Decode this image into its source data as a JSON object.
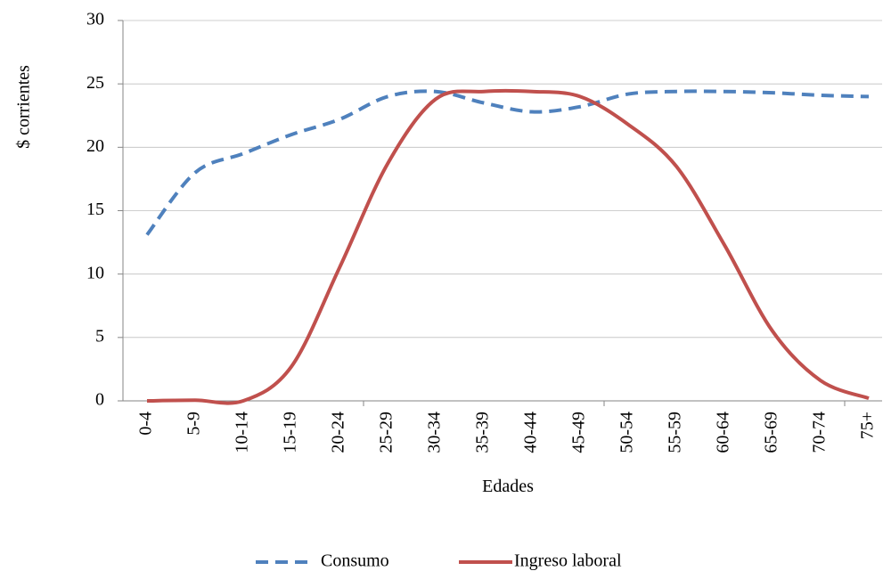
{
  "chart_data": {
    "type": "line",
    "x_label": "Edades",
    "y_label": "$ corrientes",
    "categories": [
      "0-4",
      "5-9",
      "10-14",
      "15-19",
      "20-24",
      "25-29",
      "30-34",
      "35-39",
      "40-44",
      "45-49",
      "50-54",
      "55-59",
      "60-64",
      "65-69",
      "70-74",
      "75+"
    ],
    "series": [
      {
        "name": "Consumo",
        "color": "#4f81bd",
        "dashed": true,
        "values": [
          13.1,
          18.0,
          19.5,
          21.0,
          22.2,
          24.0,
          24.4,
          23.5,
          22.8,
          23.2,
          24.2,
          24.4,
          24.4,
          24.3,
          24.1,
          24.0
        ]
      },
      {
        "name": "Ingreso laboral",
        "color": "#c0504d",
        "dashed": false,
        "values": [
          0,
          0.05,
          0,
          2.7,
          10.5,
          18.7,
          23.8,
          24.4,
          24.4,
          24.0,
          21.8,
          18.5,
          12.3,
          5.5,
          1.6,
          0.2
        ]
      }
    ],
    "ylim": [
      0,
      30
    ],
    "yticks": [
      0,
      5,
      10,
      15,
      20,
      25,
      30
    ],
    "grid": true,
    "legend": "bottom"
  }
}
